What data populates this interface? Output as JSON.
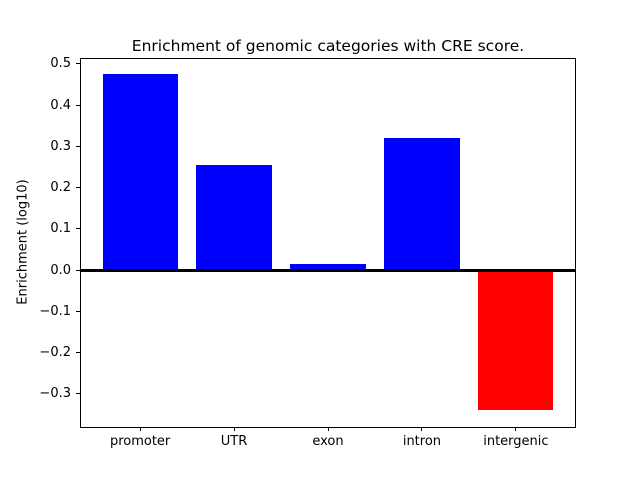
{
  "chart_data": {
    "type": "bar",
    "title": "Enrichment of genomic categories with CRE score.",
    "xlabel": "",
    "ylabel": "Enrichment (log10)",
    "categories": [
      "promoter",
      "UTR",
      "exon",
      "intron",
      "intergenic"
    ],
    "values": [
      0.475,
      0.255,
      0.014,
      0.32,
      -0.34
    ],
    "yticks": [
      -0.3,
      -0.2,
      -0.1,
      0.0,
      0.1,
      0.2,
      0.3,
      0.4,
      0.5
    ],
    "ylim": [
      -0.381,
      0.515
    ],
    "xlim": [
      -0.64,
      4.64
    ],
    "bar_width": 0.8,
    "grid": false,
    "legend": null,
    "zero_line": true,
    "colors": {
      "positive_bar": "#0000ff",
      "negative_bar": "#ff0000",
      "zero_line": "#000000",
      "axis": "#000000",
      "text": "#000000",
      "background": "#ffffff"
    }
  }
}
